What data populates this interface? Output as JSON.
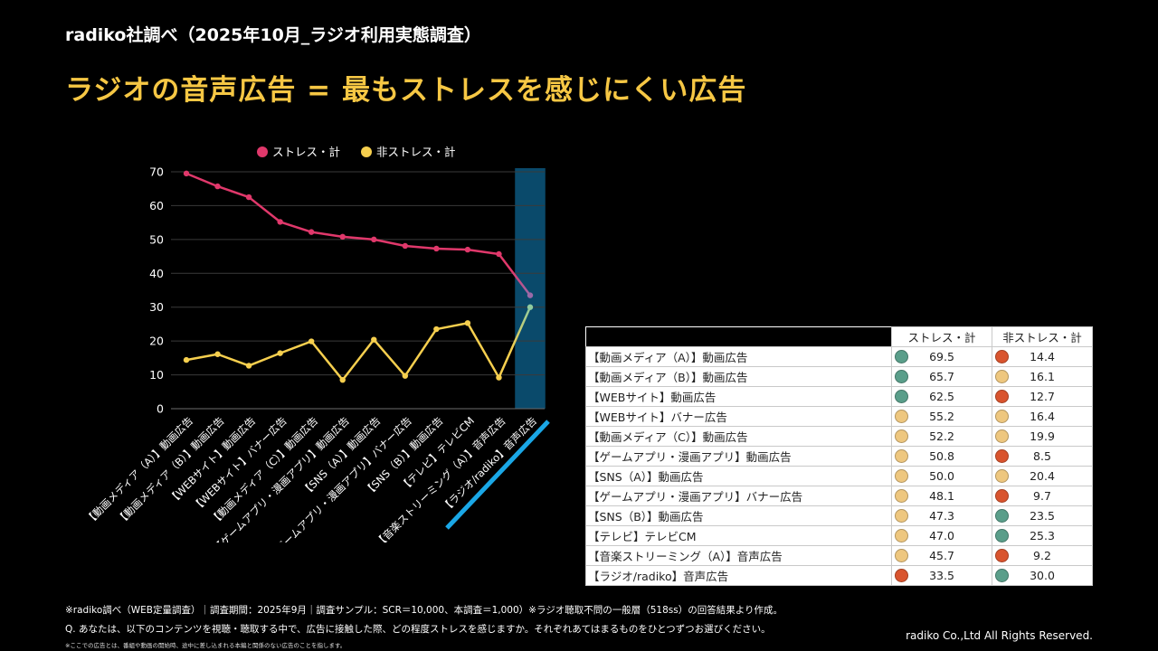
{
  "header": {
    "subtitle": "radiko社調べ（2025年10月_ラジオ利用実態調査）",
    "headline": "ラジオの音声広告 = 最もストレスを感じにくい広告"
  },
  "colors": {
    "stress": "#e0386b",
    "non_stress": "#f6cf4e",
    "highlight_band": "#0a4a6b",
    "highlight_underline": "#1aa7e6",
    "highlight_stress": "#9a6aa8",
    "highlight_non_stress": "#8fcca0",
    "dot_green": "#5a9e8a",
    "dot_orange": "#d9542e",
    "dot_yellow": "#eec77f",
    "headline": "#f6c744"
  },
  "chart_data": {
    "type": "line",
    "title": "",
    "xlabel": "",
    "ylabel": "",
    "ylim": [
      0,
      70
    ],
    "yticks": [
      0,
      10,
      20,
      30,
      40,
      50,
      60,
      70
    ],
    "grid": true,
    "legend_position": "top",
    "highlighted_category": "【ラジオ/radiko】音声広告",
    "categories": [
      "【動画メディア（A）】動画広告",
      "【動画メディア（B）】動画広告",
      "【WEBサイト】動画広告",
      "【WEBサイト】バナー広告",
      "【動画メディア（C）】動画広告",
      "【ゲームアプリ・漫画アプリ】動画広告",
      "【SNS（A）】動画広告",
      "【ゲームアプリ・漫画アプリ】バナー広告",
      "【SNS（B）】動画広告",
      "【テレビ】テレビCM",
      "【音楽ストリーミング（A）】音声広告",
      "【ラジオ/radiko】音声広告"
    ],
    "series": [
      {
        "name": "ストレス・計",
        "values": [
          69.5,
          65.7,
          62.5,
          55.2,
          52.2,
          50.8,
          50.0,
          48.1,
          47.3,
          47.0,
          45.7,
          33.5
        ]
      },
      {
        "name": "非ストレス・計",
        "values": [
          14.4,
          16.1,
          12.7,
          16.4,
          19.9,
          8.5,
          20.4,
          9.7,
          23.5,
          25.3,
          9.2,
          30.0
        ]
      }
    ]
  },
  "table": {
    "headers": [
      "ストレス・計",
      "非ストレス・計"
    ],
    "rows": [
      {
        "label": "【動画メディア（A）】動画広告",
        "stress": "69.5",
        "stress_dot": "green",
        "non_stress": "14.4",
        "non_stress_dot": "orange"
      },
      {
        "label": "【動画メディア（B）】動画広告",
        "stress": "65.7",
        "stress_dot": "green",
        "non_stress": "16.1",
        "non_stress_dot": "yellow"
      },
      {
        "label": "【WEBサイト】動画広告",
        "stress": "62.5",
        "stress_dot": "green",
        "non_stress": "12.7",
        "non_stress_dot": "orange"
      },
      {
        "label": "【WEBサイト】バナー広告",
        "stress": "55.2",
        "stress_dot": "yellow",
        "non_stress": "16.4",
        "non_stress_dot": "yellow"
      },
      {
        "label": "【動画メディア（C）】動画広告",
        "stress": "52.2",
        "stress_dot": "yellow",
        "non_stress": "19.9",
        "non_stress_dot": "yellow"
      },
      {
        "label": "【ゲームアプリ・漫画アプリ】動画広告",
        "stress": "50.8",
        "stress_dot": "yellow",
        "non_stress": "8.5",
        "non_stress_dot": "orange"
      },
      {
        "label": "【SNS（A）】動画広告",
        "stress": "50.0",
        "stress_dot": "yellow",
        "non_stress": "20.4",
        "non_stress_dot": "yellow"
      },
      {
        "label": "【ゲームアプリ・漫画アプリ】バナー広告",
        "stress": "48.1",
        "stress_dot": "yellow",
        "non_stress": "9.7",
        "non_stress_dot": "orange"
      },
      {
        "label": "【SNS（B）】動画広告",
        "stress": "47.3",
        "stress_dot": "yellow",
        "non_stress": "23.5",
        "non_stress_dot": "green"
      },
      {
        "label": "【テレビ】テレビCM",
        "stress": "47.0",
        "stress_dot": "yellow",
        "non_stress": "25.3",
        "non_stress_dot": "green"
      },
      {
        "label": "【音楽ストリーミング（A）】音声広告",
        "stress": "45.7",
        "stress_dot": "yellow",
        "non_stress": "9.2",
        "non_stress_dot": "orange"
      },
      {
        "label": "【ラジオ/radiko】音声広告",
        "stress": "33.5",
        "stress_dot": "orange",
        "non_stress": "30.0",
        "non_stress_dot": "green"
      }
    ]
  },
  "footer": {
    "note1": "※radiko調べ（WEB定量調査）｜調査期間：2025年9月｜調査サンプル：SCR＝10,000、本調査＝1,000）※ラジオ聴取不問の一般層（518ss）の回答結果より作成。",
    "note2": "Q. あなたは、以下のコンテンツを視聴・聴取する中で、広告に接触した際、どの程度ストレスを感じますか。それぞれあてはまるものをひとつずつお選びください。",
    "note3": "※ここでの広告とは、番組や動画の開始時、途中に差し込まれる本編と関係のない広告のことを指します。",
    "copyright": "radiko Co.,Ltd All Rights Reserved."
  }
}
